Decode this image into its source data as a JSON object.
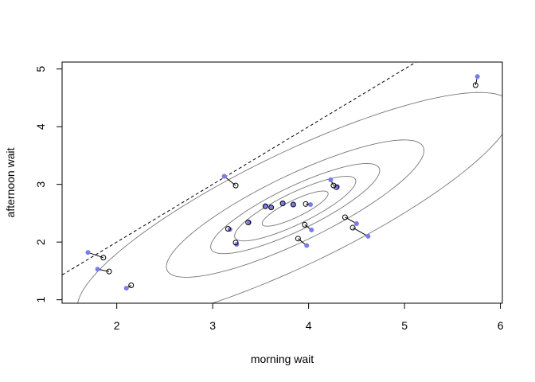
{
  "chart_data": {
    "type": "scatter",
    "title": "",
    "xlabel": "morning wait",
    "ylabel": "afternoon wait",
    "xlim": [
      1.43,
      6.02
    ],
    "ylim": [
      0.94,
      5.12
    ],
    "xticks": [
      2,
      3,
      4,
      5,
      6
    ],
    "yticks": [
      1,
      2,
      3,
      4,
      5
    ],
    "grid": false,
    "colors": {
      "raw_points": "#7b7bf0",
      "shrunk_points": "#000000",
      "contours": "#777777",
      "reference_line": "#000000"
    },
    "raw_points": [
      {
        "x": 1.7,
        "y": 1.82
      },
      {
        "x": 1.8,
        "y": 1.53
      },
      {
        "x": 2.1,
        "y": 1.2
      },
      {
        "x": 3.12,
        "y": 3.14
      },
      {
        "x": 3.18,
        "y": 2.22
      },
      {
        "x": 3.25,
        "y": 1.96
      },
      {
        "x": 3.38,
        "y": 2.34
      },
      {
        "x": 3.55,
        "y": 2.63
      },
      {
        "x": 3.61,
        "y": 2.6
      },
      {
        "x": 3.73,
        "y": 2.68
      },
      {
        "x": 3.84,
        "y": 2.65
      },
      {
        "x": 3.98,
        "y": 1.94
      },
      {
        "x": 4.02,
        "y": 2.65
      },
      {
        "x": 4.03,
        "y": 2.21
      },
      {
        "x": 4.23,
        "y": 3.08
      },
      {
        "x": 4.3,
        "y": 2.96
      },
      {
        "x": 4.5,
        "y": 2.32
      },
      {
        "x": 4.62,
        "y": 2.1
      },
      {
        "x": 5.76,
        "y": 4.87
      }
    ],
    "shrunk_points": [
      {
        "x": 1.86,
        "y": 1.73
      },
      {
        "x": 1.92,
        "y": 1.49
      },
      {
        "x": 2.15,
        "y": 1.25
      },
      {
        "x": 3.24,
        "y": 2.98
      },
      {
        "x": 3.16,
        "y": 2.23
      },
      {
        "x": 3.24,
        "y": 1.99
      },
      {
        "x": 3.37,
        "y": 2.34
      },
      {
        "x": 3.55,
        "y": 2.62
      },
      {
        "x": 3.61,
        "y": 2.6
      },
      {
        "x": 3.73,
        "y": 2.67
      },
      {
        "x": 3.84,
        "y": 2.65
      },
      {
        "x": 3.89,
        "y": 2.06
      },
      {
        "x": 3.97,
        "y": 2.66
      },
      {
        "x": 3.96,
        "y": 2.3
      },
      {
        "x": 4.26,
        "y": 2.98
      },
      {
        "x": 4.29,
        "y": 2.95
      },
      {
        "x": 4.38,
        "y": 2.43
      },
      {
        "x": 4.46,
        "y": 2.25
      },
      {
        "x": 5.74,
        "y": 4.72
      }
    ],
    "contours": {
      "center": [
        3.86,
        2.58
      ],
      "covariance": [
        [
          0.56,
          0.42
        ],
        [
          0.42,
          0.44
        ]
      ],
      "levels": [
        0.1,
        0.3,
        0.5,
        0.8,
        0.99
      ]
    },
    "reference_line": {
      "intercept": 0.0,
      "slope": 1.0,
      "style": "dashed"
    }
  }
}
